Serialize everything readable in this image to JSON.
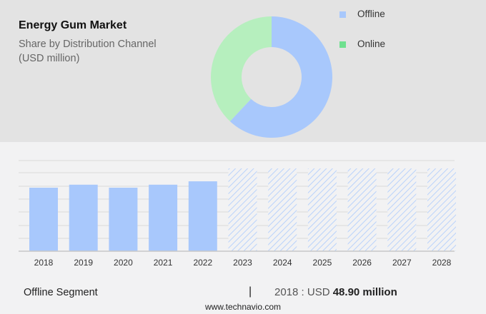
{
  "header": {
    "title": "Energy Gum Market",
    "subtitle_line1": "Share by Distribution Channel",
    "subtitle_line2": "(USD million)"
  },
  "legend": [
    {
      "label": "Offline",
      "color": "#a8c8fc"
    },
    {
      "label": "Online",
      "color": "#6fe08f"
    }
  ],
  "footer": {
    "segment": "Offline Segment",
    "separator": "|",
    "value_prefix": "2018 : USD ",
    "value_bold": "48.90 million",
    "website": "www.technavio.com"
  },
  "chart_data": [
    {
      "type": "pie",
      "title": "Energy Gum Market - Share by Distribution Channel (USD million)",
      "donut": true,
      "categories": [
        "Offline",
        "Online"
      ],
      "values": [
        62,
        38
      ],
      "colors": [
        "#a8c8fc",
        "#b6efbe"
      ]
    },
    {
      "type": "bar",
      "title": "Offline Segment",
      "categories": [
        "2018",
        "2019",
        "2020",
        "2021",
        "2022",
        "2023",
        "2024",
        "2025",
        "2026",
        "2027",
        "2028"
      ],
      "values": [
        48.9,
        51.2,
        48.9,
        51.2,
        53.8,
        null,
        null,
        null,
        null,
        null,
        null
      ],
      "forecast_placeholder": [
        false,
        false,
        false,
        false,
        false,
        true,
        true,
        true,
        true,
        true,
        true
      ],
      "xlabel": "",
      "ylabel": "",
      "grid": true,
      "annotation": "2018 : USD 48.90 million"
    }
  ]
}
